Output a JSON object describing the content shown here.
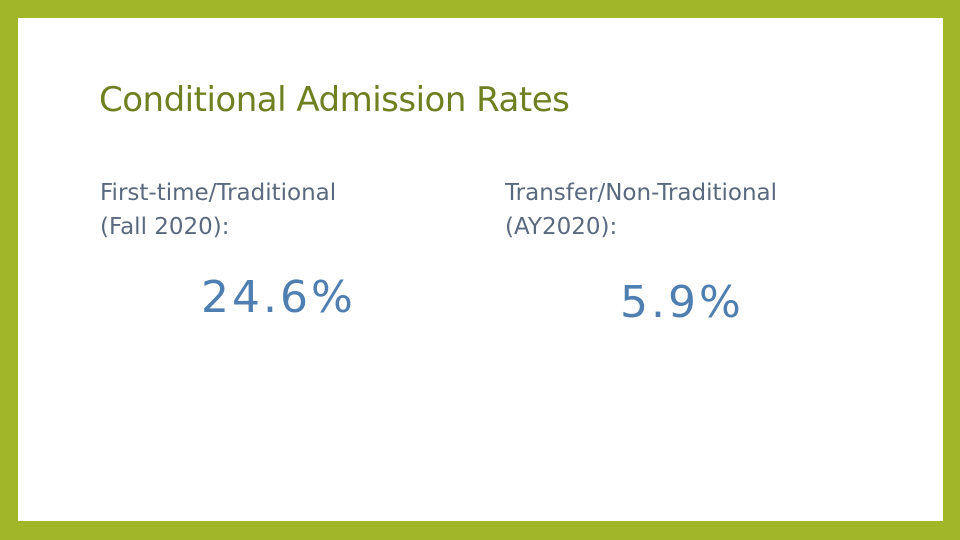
{
  "slide": {
    "title": "Conditional Admission Rates",
    "left": {
      "label_line1": "First-time/Traditional",
      "label_line2": "(Fall 2020):",
      "value": "24.6%"
    },
    "right": {
      "label_line1": "Transfer/Non-Traditional",
      "label_line2": "(AY2020):",
      "value": "5.9%"
    }
  },
  "colors": {
    "frame": "#a2b728",
    "title": "#6f8021",
    "label": "#5a6a7e",
    "value": "#4f7fb1"
  }
}
